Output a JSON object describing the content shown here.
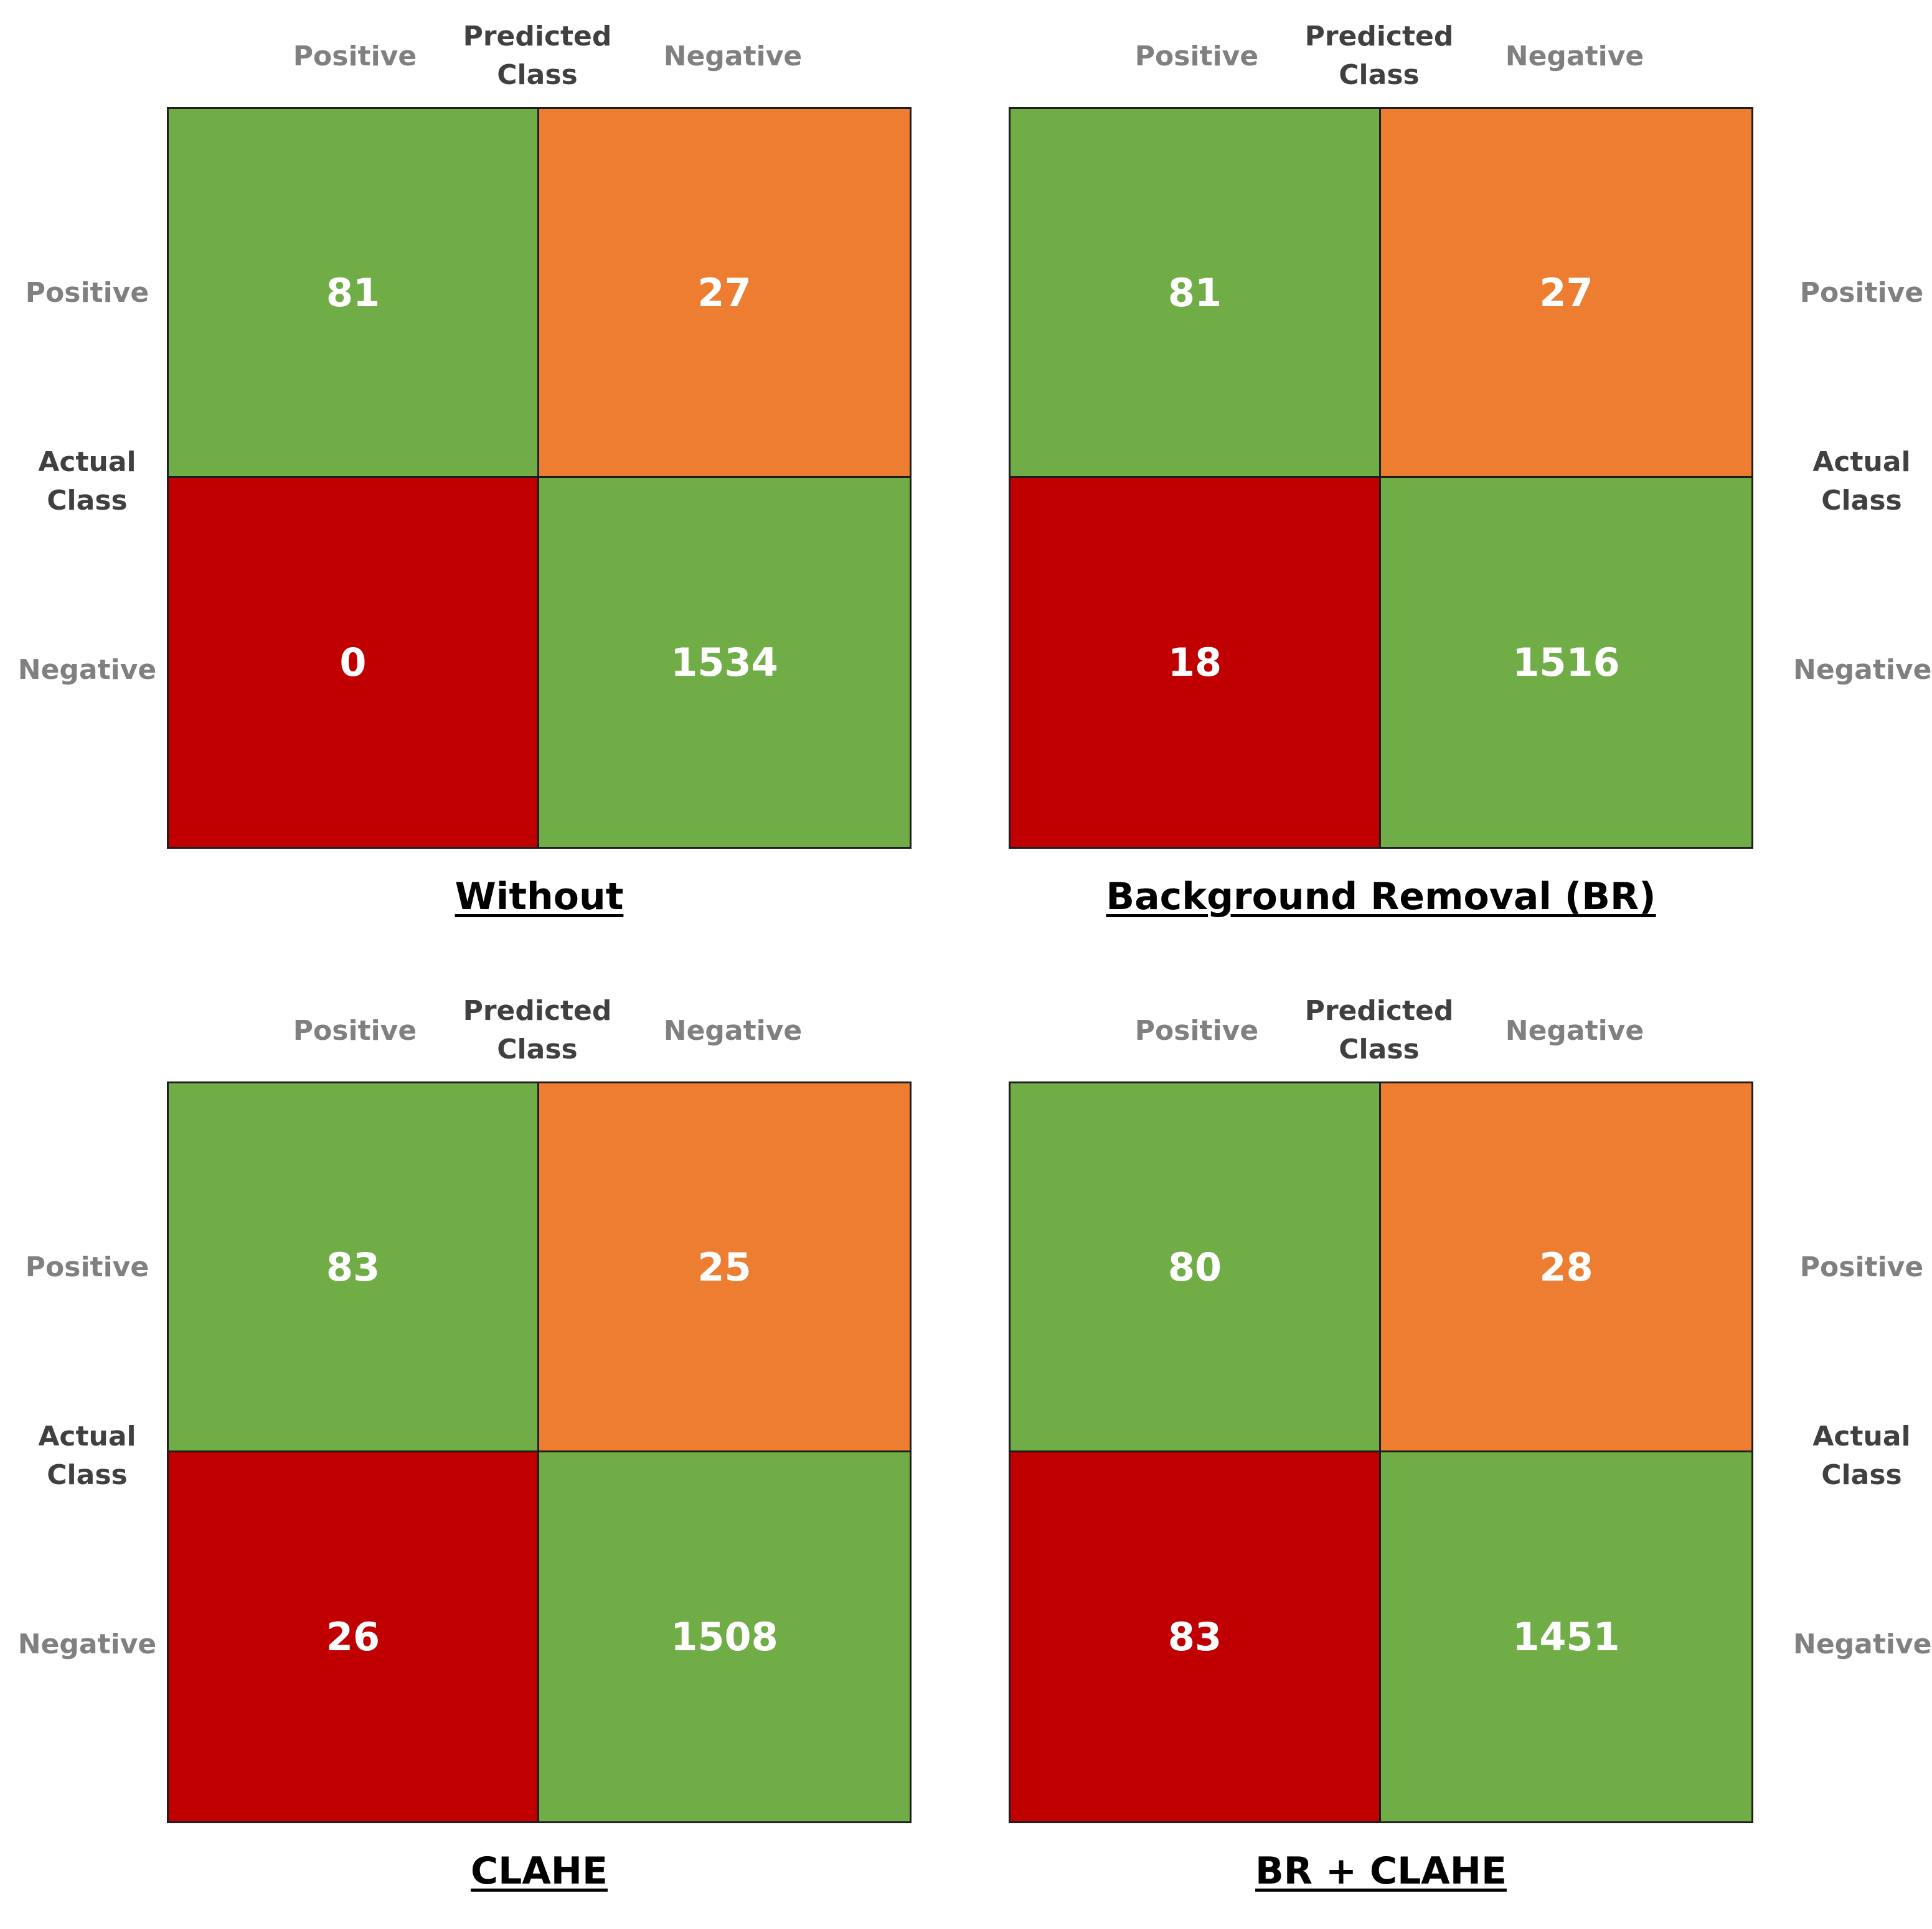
{
  "colors": {
    "correct": "#70ad47",
    "false_negative": "#ed7d31",
    "false_positive": "#c00000",
    "axis_label": "#808080",
    "axis_title": "#404040"
  },
  "labels": {
    "predicted_title_line1": "Predicted",
    "predicted_title_line2": "Class",
    "actual_title_line1": "Actual",
    "actual_title_line2": "Class",
    "positive": "Positive",
    "negative": "Negative"
  },
  "chart_data": [
    {
      "type": "heatmap",
      "title": "Without",
      "x_categories": [
        "Positive",
        "Negative"
      ],
      "y_categories": [
        "Positive",
        "Negative"
      ],
      "xlabel": "Predicted Class",
      "ylabel": "Actual Class",
      "ylabel_side": "left",
      "values": [
        [
          81,
          27
        ],
        [
          0,
          1534
        ]
      ]
    },
    {
      "type": "heatmap",
      "title": "Background Removal (BR)",
      "x_categories": [
        "Positive",
        "Negative"
      ],
      "y_categories": [
        "Positive",
        "Negative"
      ],
      "xlabel": "Predicted Class",
      "ylabel": "Actual Class",
      "ylabel_side": "right",
      "values": [
        [
          81,
          27
        ],
        [
          18,
          1516
        ]
      ]
    },
    {
      "type": "heatmap",
      "title": "CLAHE",
      "x_categories": [
        "Positive",
        "Negative"
      ],
      "y_categories": [
        "Positive",
        "Negative"
      ],
      "xlabel": "Predicted Class",
      "ylabel": "Actual Class",
      "ylabel_side": "left",
      "values": [
        [
          83,
          25
        ],
        [
          26,
          1508
        ]
      ]
    },
    {
      "type": "heatmap",
      "title": "BR + CLAHE",
      "x_categories": [
        "Positive",
        "Negative"
      ],
      "y_categories": [
        "Positive",
        "Negative"
      ],
      "xlabel": "Predicted Class",
      "ylabel": "Actual Class",
      "ylabel_side": "right",
      "values": [
        [
          80,
          28
        ],
        [
          83,
          1451
        ]
      ]
    }
  ]
}
